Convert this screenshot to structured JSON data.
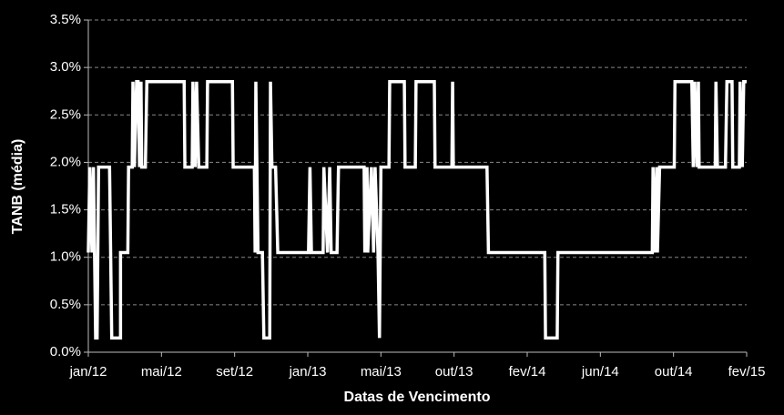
{
  "chart_data": {
    "type": "line",
    "xlabel": "Datas de Vencimento",
    "ylabel": "TANB (média)",
    "color": "#ffffff",
    "grid": true,
    "xlim": [
      0,
      9
    ],
    "xticks": [
      {
        "value": 0,
        "label": "jan/12"
      },
      {
        "value": 1,
        "label": "mai/12"
      },
      {
        "value": 2,
        "label": "set/12"
      },
      {
        "value": 3,
        "label": "jan/13"
      },
      {
        "value": 4,
        "label": "mai/13"
      },
      {
        "value": 5,
        "label": "out/13"
      },
      {
        "value": 6,
        "label": "fev/14"
      },
      {
        "value": 7,
        "label": "jun/14"
      },
      {
        "value": 8,
        "label": "out/14"
      },
      {
        "value": 9,
        "label": "fev/15"
      }
    ],
    "ylim": [
      0,
      3.5
    ],
    "yticks": [
      {
        "value": 0,
        "label": "0.0%"
      },
      {
        "value": 0.5,
        "label": "0.5%"
      },
      {
        "value": 1,
        "label": "1.0%"
      },
      {
        "value": 1.5,
        "label": "1.5%"
      },
      {
        "value": 2,
        "label": "2.0%"
      },
      {
        "value": 2.5,
        "label": "2.5%"
      },
      {
        "value": 3,
        "label": "3.0%"
      },
      {
        "value": 3.5,
        "label": "3.5%"
      }
    ],
    "x": [
      0,
      0.02,
      0.05,
      0.07,
      0.1,
      0.12,
      0.14,
      0.29,
      0.32,
      0.44,
      0.44,
      0.54,
      0.55,
      0.6,
      0.61,
      0.63,
      0.66,
      0.68,
      0.7,
      0.72,
      0.73,
      0.78,
      0.8,
      1.31,
      1.32,
      1.42,
      1.43,
      1.46,
      1.48,
      1.51,
      1.62,
      1.63,
      1.97,
      1.98,
      2.27,
      2.28,
      2.29,
      2.32,
      2.38,
      2.4,
      2.48,
      2.49,
      2.51,
      2.56,
      2.59,
      3.01,
      3.03,
      3.05,
      3.21,
      3.22,
      3.27,
      3.3,
      3.32,
      3.4,
      3.42,
      3.77,
      3.78,
      3.81,
      3.82,
      3.87,
      3.9,
      3.92,
      3.96,
      3.98,
      4.0,
      4.11,
      4.12,
      4.32,
      4.33,
      4.47,
      4.48,
      4.73,
      4.74,
      4.97,
      4.98,
      4.99,
      5.45,
      5.47,
      6.24,
      6.25,
      6.41,
      6.42,
      7.71,
      7.72,
      7.74,
      7.77,
      7.78,
      7.81,
      8.01,
      8.02,
      8.25,
      8.27,
      8.29,
      8.32,
      8.34,
      8.35,
      8.57,
      8.58,
      8.6,
      8.71,
      8.73,
      8.8,
      8.81,
      8.9,
      8.91,
      8.94,
      8.96,
      9
    ],
    "values": [
      1.05,
      1.95,
      1.05,
      1.95,
      0.15,
      0.15,
      1.95,
      1.95,
      0.15,
      0.15,
      1.05,
      1.05,
      1.95,
      1.95,
      2.85,
      1.95,
      2.85,
      2.85,
      1.95,
      2.85,
      1.95,
      1.95,
      2.85,
      2.85,
      1.95,
      1.95,
      2.85,
      1.95,
      2.85,
      1.95,
      1.95,
      2.85,
      2.85,
      1.95,
      1.95,
      1.05,
      2.85,
      1.05,
      1.05,
      0.15,
      0.15,
      2.85,
      1.95,
      1.95,
      1.05,
      1.05,
      1.95,
      1.05,
      1.05,
      1.95,
      1.05,
      1.95,
      1.05,
      1.05,
      1.95,
      1.95,
      1.05,
      1.95,
      1.05,
      1.95,
      1.05,
      1.95,
      1.05,
      0.15,
      1.95,
      1.95,
      2.85,
      2.85,
      1.95,
      1.95,
      2.85,
      2.85,
      1.95,
      1.95,
      2.85,
      1.95,
      1.95,
      1.05,
      1.05,
      0.15,
      0.15,
      1.05,
      1.05,
      1.95,
      1.05,
      1.95,
      1.05,
      1.95,
      1.95,
      2.85,
      2.85,
      1.95,
      2.85,
      1.95,
      2.85,
      1.95,
      1.95,
      2.85,
      1.95,
      1.95,
      2.85,
      2.85,
      1.95,
      1.95,
      2.85,
      1.95,
      2.85,
      2.85
    ]
  }
}
